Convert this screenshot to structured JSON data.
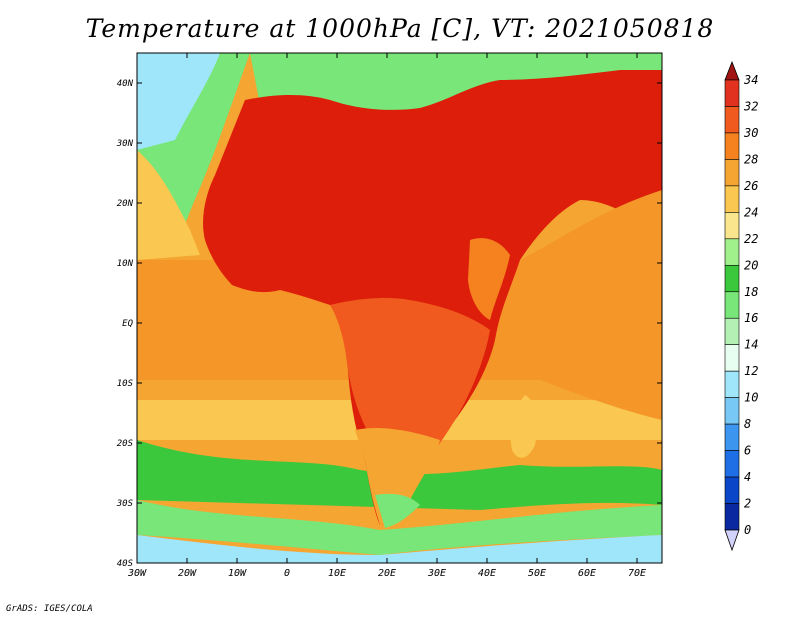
{
  "title": "Temperature at 1000hPa [C], VT: 2021050818",
  "credit": "GrADS: IGES/COLA",
  "lon_ticks": [
    "30W",
    "20W",
    "10W",
    "0",
    "10E",
    "20E",
    "30E",
    "40E",
    "50E",
    "60E",
    "70E"
  ],
  "lat_ticks": [
    "40N",
    "30N",
    "20N",
    "10N",
    "EQ",
    "10S",
    "20S",
    "30S",
    "40S"
  ],
  "colorbar": {
    "labels": [
      "34",
      "32",
      "30",
      "28",
      "26",
      "24",
      "22",
      "20",
      "18",
      "16",
      "14",
      "12",
      "10",
      "8",
      "6",
      "4",
      "2",
      "0"
    ],
    "colors": [
      "#c8281e",
      "#e0321e",
      "#f05a1e",
      "#f5821e",
      "#f5a532",
      "#fac850",
      "#fae68c",
      "#a0f08c",
      "#3cc83c",
      "#78e678",
      "#b4f0b4",
      "#e6fff0",
      "#a0e6fa",
      "#78c8f5",
      "#3c96f0",
      "#1e6ee6",
      "#0a46c8",
      "#0a28a0",
      "#000064"
    ],
    "top_tip_color": "#a01414",
    "bottom_tip_color": "#d2d2fa"
  },
  "map": {
    "lon_range": [
      -30,
      75
    ],
    "lat_range": [
      -40,
      45
    ],
    "ocean_color": "#f5a532",
    "hot_land_color": "#dc1e0a"
  }
}
